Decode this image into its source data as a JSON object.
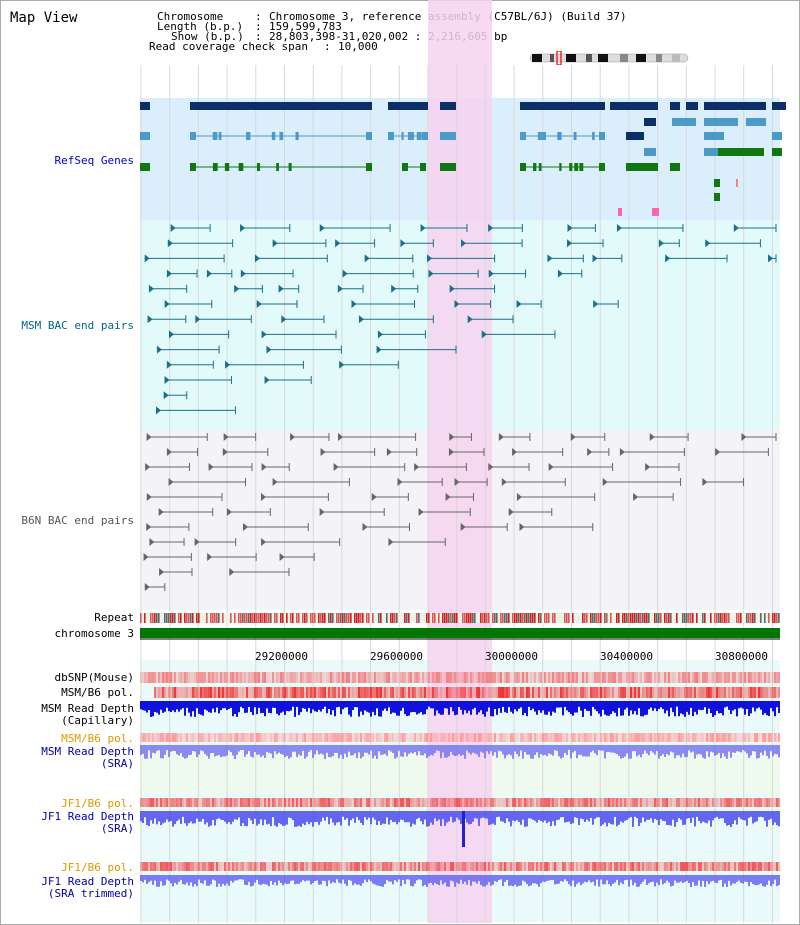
{
  "title": "Map View",
  "header": {
    "chromosome_label": "Chromosome",
    "chromosome_value": "Chromosome 3, reference assembly (C57BL/6J) (Build 37)",
    "length_label": "Length (b.p.)",
    "length_value": "159,599,783",
    "show_label": "Show (b.p.)",
    "show_value": "28,803,398-31,020,002 : 2,216,605 bp",
    "coverage_label": "Read coverage check span",
    "coverage_value": "10,000"
  },
  "tracks": {
    "refseq": "RefSeq Genes",
    "msm_bac": "MSM BAC end pairs",
    "b6n_bac": "B6N BAC end pairs",
    "repeat": "Repeat",
    "chromosome": "chromosome 3",
    "dbsnp": "dbSNP(Mouse)",
    "msm_b6_pol_1": "MSM/B6 pol.",
    "msm_read_depth_cap": "MSM Read Depth\n(Capillary)",
    "msm_b6_pol_2": "MSM/B6 pol.",
    "msm_read_depth_sra": "MSM Read Depth\n(SRA)",
    "jf1_b6_pol_1": "JF1/B6 pol.",
    "jf1_read_depth_sra": "JF1 Read Depth\n(SRA)",
    "jf1_b6_pol_2": "JF1/B6 pol.",
    "jf1_read_depth_trim": "JF1 Read Depth\n(SRA trimmed)"
  },
  "axis": {
    "ticks": [
      "29200000",
      "29600000",
      "30000000",
      "30400000",
      "30800000"
    ]
  },
  "colors": {
    "refseq_label": "#0000cc",
    "msm_label": "#006688",
    "b6n_label": "#555555",
    "pol_orange": "#e69500",
    "depth_blue": "#000099",
    "highlight": "#f7d2f0"
  }
}
